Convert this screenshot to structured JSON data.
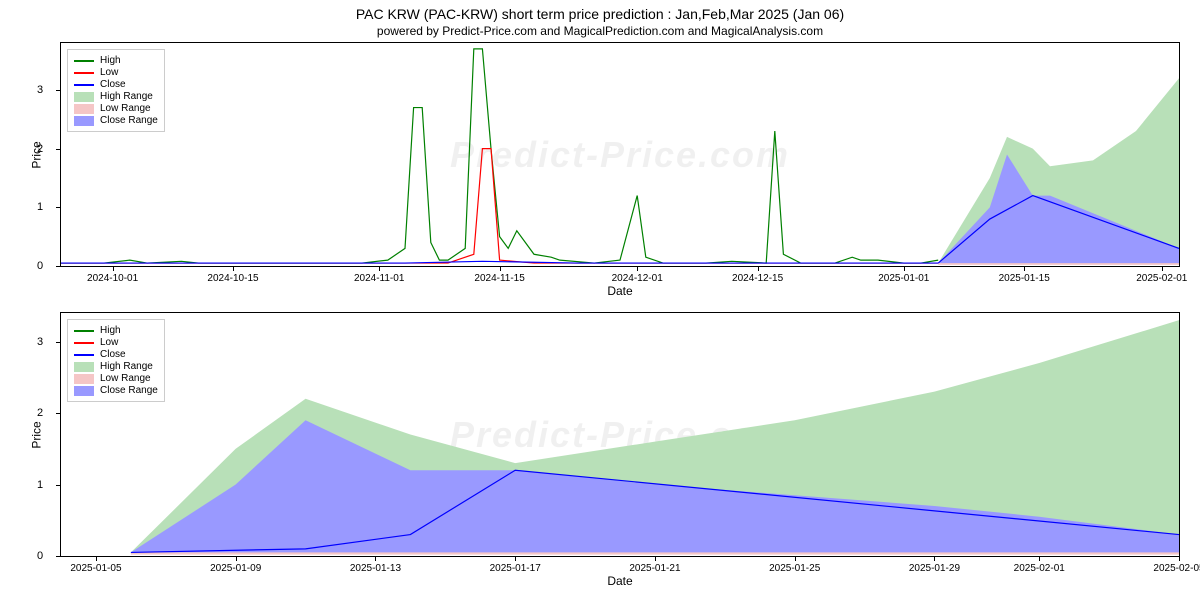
{
  "title": "PAC KRW (PAC-KRW) short term price prediction : Jan,Feb,Mar 2025 (Jan 06)",
  "subtitle": "powered by Predict-Price.com and MagicalPrediction.com and MagicalAnalysis.com",
  "watermark": "Predict-Price.com",
  "legend": {
    "items": [
      {
        "type": "line",
        "label": "High",
        "color": "#008000"
      },
      {
        "type": "line",
        "label": "Low",
        "color": "#ff0000"
      },
      {
        "type": "line",
        "label": "Close",
        "color": "#0000ff"
      },
      {
        "type": "patch",
        "label": "High Range",
        "color": "#b8e0b8"
      },
      {
        "type": "patch",
        "label": "Low Range",
        "color": "#f5c6c6"
      },
      {
        "type": "patch",
        "label": "Close Range",
        "color": "#9999ff"
      }
    ]
  },
  "top_chart": {
    "type": "line_area",
    "ylabel": "Price",
    "xlabel": "Date",
    "ylim": [
      0,
      3.8
    ],
    "yticks": [
      0,
      1,
      2,
      3
    ],
    "xlim": [
      0,
      130
    ],
    "xticks": [
      {
        "pos": 6,
        "label": "2024-10-01"
      },
      {
        "pos": 20,
        "label": "2024-10-15"
      },
      {
        "pos": 37,
        "label": "2024-11-01"
      },
      {
        "pos": 51,
        "label": "2024-11-15"
      },
      {
        "pos": 67,
        "label": "2024-12-01"
      },
      {
        "pos": 81,
        "label": "2024-12-15"
      },
      {
        "pos": 98,
        "label": "2025-01-01"
      },
      {
        "pos": 112,
        "label": "2025-01-15"
      },
      {
        "pos": 128,
        "label": "2025-02-01"
      }
    ],
    "colors": {
      "high_line": "#008000",
      "low_line": "#ff0000",
      "close_line": "#0000ff",
      "high_range": "#b8e0b8",
      "low_range": "#f5c6c6",
      "close_range": "#9999ff",
      "background": "#ffffff",
      "border": "#000000"
    },
    "line_width": 1.2,
    "high_data": [
      [
        0,
        0.05
      ],
      [
        5,
        0.05
      ],
      [
        8,
        0.1
      ],
      [
        10,
        0.05
      ],
      [
        14,
        0.08
      ],
      [
        16,
        0.05
      ],
      [
        20,
        0.05
      ],
      [
        25,
        0.05
      ],
      [
        30,
        0.05
      ],
      [
        35,
        0.05
      ],
      [
        38,
        0.1
      ],
      [
        40,
        0.3
      ],
      [
        41,
        2.7
      ],
      [
        42,
        2.7
      ],
      [
        43,
        0.4
      ],
      [
        44,
        0.1
      ],
      [
        45,
        0.1
      ],
      [
        47,
        0.3
      ],
      [
        48,
        3.7
      ],
      [
        49,
        3.7
      ],
      [
        50,
        2.0
      ],
      [
        51,
        0.5
      ],
      [
        52,
        0.3
      ],
      [
        53,
        0.6
      ],
      [
        55,
        0.2
      ],
      [
        57,
        0.15
      ],
      [
        58,
        0.1
      ],
      [
        62,
        0.05
      ],
      [
        65,
        0.1
      ],
      [
        67,
        1.2
      ],
      [
        68,
        0.15
      ],
      [
        70,
        0.05
      ],
      [
        75,
        0.05
      ],
      [
        78,
        0.08
      ],
      [
        82,
        0.05
      ],
      [
        83,
        2.3
      ],
      [
        84,
        0.2
      ],
      [
        86,
        0.05
      ],
      [
        90,
        0.05
      ],
      [
        92,
        0.15
      ],
      [
        93,
        0.1
      ],
      [
        95,
        0.1
      ],
      [
        98,
        0.05
      ],
      [
        100,
        0.05
      ],
      [
        102,
        0.1
      ]
    ],
    "low_data": [
      [
        0,
        0.05
      ],
      [
        10,
        0.05
      ],
      [
        20,
        0.05
      ],
      [
        30,
        0.05
      ],
      [
        40,
        0.05
      ],
      [
        45,
        0.05
      ],
      [
        48,
        0.2
      ],
      [
        49,
        2.0
      ],
      [
        50,
        2.0
      ],
      [
        51,
        0.1
      ],
      [
        55,
        0.05
      ],
      [
        60,
        0.05
      ],
      [
        70,
        0.05
      ],
      [
        80,
        0.05
      ],
      [
        90,
        0.05
      ],
      [
        100,
        0.05
      ],
      [
        102,
        0.05
      ]
    ],
    "close_data": [
      [
        0,
        0.05
      ],
      [
        20,
        0.05
      ],
      [
        40,
        0.05
      ],
      [
        49,
        0.08
      ],
      [
        60,
        0.05
      ],
      [
        80,
        0.05
      ],
      [
        100,
        0.05
      ],
      [
        102,
        0.05
      ]
    ],
    "forecast_start": 102,
    "high_range_poly": [
      [
        102,
        0.05
      ],
      [
        108,
        1.5
      ],
      [
        110,
        2.2
      ],
      [
        113,
        2.0
      ],
      [
        115,
        1.7
      ],
      [
        120,
        1.8
      ],
      [
        125,
        2.3
      ],
      [
        130,
        3.2
      ],
      [
        130,
        0.05
      ],
      [
        102,
        0.05
      ]
    ],
    "close_range_poly": [
      [
        102,
        0.05
      ],
      [
        108,
        1.0
      ],
      [
        110,
        1.9
      ],
      [
        113,
        1.2
      ],
      [
        115,
        1.2
      ],
      [
        130,
        0.3
      ],
      [
        130,
        0.05
      ],
      [
        102,
        0.05
      ]
    ],
    "low_range_poly": [
      [
        102,
        0.05
      ],
      [
        130,
        0.15
      ],
      [
        130,
        0.02
      ],
      [
        102,
        0.02
      ]
    ],
    "close_forecast_line": [
      [
        102,
        0.05
      ],
      [
        108,
        0.8
      ],
      [
        113,
        1.2
      ],
      [
        130,
        0.3
      ]
    ]
  },
  "bottom_chart": {
    "type": "line_area",
    "ylabel": "Price",
    "xlabel": "Date",
    "ylim": [
      0,
      3.4
    ],
    "yticks": [
      0,
      1,
      2,
      3
    ],
    "xlim": [
      0,
      32
    ],
    "xticks": [
      {
        "pos": 1,
        "label": "2025-01-05"
      },
      {
        "pos": 5,
        "label": "2025-01-09"
      },
      {
        "pos": 9,
        "label": "2025-01-13"
      },
      {
        "pos": 13,
        "label": "2025-01-17"
      },
      {
        "pos": 17,
        "label": "2025-01-21"
      },
      {
        "pos": 21,
        "label": "2025-01-25"
      },
      {
        "pos": 25,
        "label": "2025-01-29"
      },
      {
        "pos": 28,
        "label": "2025-02-01"
      },
      {
        "pos": 32,
        "label": "2025-02-05"
      }
    ],
    "colors": {
      "high_line": "#008000",
      "low_line": "#ff0000",
      "close_line": "#0000ff",
      "high_range": "#b8e0b8",
      "low_range": "#f5c6c6",
      "close_range": "#9999ff"
    },
    "line_width": 1.2,
    "high_range_poly": [
      [
        2,
        0.05
      ],
      [
        5,
        1.5
      ],
      [
        7,
        2.2
      ],
      [
        10,
        1.7
      ],
      [
        13,
        1.3
      ],
      [
        17,
        1.6
      ],
      [
        21,
        1.9
      ],
      [
        25,
        2.3
      ],
      [
        28,
        2.7
      ],
      [
        32,
        3.3
      ],
      [
        32,
        0.05
      ],
      [
        2,
        0.05
      ]
    ],
    "close_range_poly": [
      [
        2,
        0.05
      ],
      [
        5,
        1.0
      ],
      [
        7,
        1.9
      ],
      [
        10,
        1.2
      ],
      [
        13,
        1.2
      ],
      [
        17,
        1.0
      ],
      [
        21,
        0.85
      ],
      [
        25,
        0.7
      ],
      [
        28,
        0.55
      ],
      [
        32,
        0.3
      ],
      [
        32,
        0.05
      ],
      [
        2,
        0.05
      ]
    ],
    "low_range_poly": [
      [
        2,
        0.05
      ],
      [
        32,
        0.15
      ],
      [
        32,
        0.02
      ],
      [
        2,
        0.02
      ]
    ],
    "close_line_data": [
      [
        2,
        0.05
      ],
      [
        7,
        0.1
      ],
      [
        10,
        0.3
      ],
      [
        13,
        1.2
      ],
      [
        32,
        0.3
      ]
    ]
  }
}
